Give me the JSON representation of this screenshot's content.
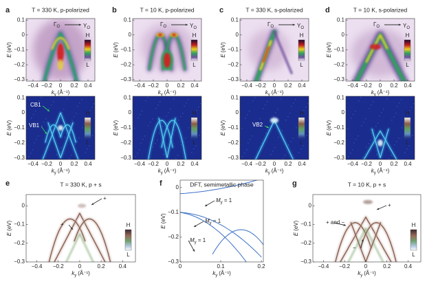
{
  "axes": {
    "ylabel_var": "E",
    "ylabel_unit": "(eV)",
    "xlabel_var": "k",
    "xlabel_sub": "y",
    "xlabel_unit": "(Å⁻¹)",
    "xticks": [
      "−0.4",
      "−0.2",
      "0",
      "0.2",
      "0.4"
    ],
    "yticks": [
      "0.1",
      "0",
      "−0.1",
      "−0.2",
      "−0.3"
    ]
  },
  "path_label": {
    "from": "Γ",
    "from_sub": "O",
    "to": "Y",
    "to_sub": "O"
  },
  "colorbar": {
    "high": "H",
    "low": "L"
  },
  "top_row": [
    {
      "label": "a",
      "title": "T = 330 K, p-polarized"
    },
    {
      "label": "b",
      "title": "T = 10 K, p-polarized"
    },
    {
      "label": "c",
      "title": "T = 330 K, s-polarized"
    },
    {
      "label": "d",
      "title": "T = 10 K, s-polarized"
    }
  ],
  "middle_row_annotations": {
    "a": [
      "CB1",
      "VB1"
    ],
    "c": [
      "VB2"
    ]
  },
  "bottom_row": [
    {
      "label": "e",
      "title": "T = 330 K, p + s",
      "yticks": [
        "0",
        "−0.1",
        "−0.2",
        "−0.3"
      ],
      "annotations": [
        "+",
        "+"
      ]
    },
    {
      "label": "f",
      "title": "DFT, semimetallic phase",
      "xticks": [
        "0",
        "0.1",
        "0.2"
      ],
      "yticks": [
        "0",
        "−0.1",
        "−0.2",
        "−0.3"
      ],
      "annotations": [
        {
          "var": "M",
          "sub": "y",
          "eq": " = 1"
        },
        {
          "var": "M",
          "sub": "y",
          "eq": " = 1"
        },
        {
          "var": "M",
          "sub": "y",
          "eq": " = 1"
        }
      ]
    },
    {
      "label": "g",
      "title": "T = 10 K, p + s",
      "yticks": [
        "0",
        "−0.1",
        "−0.2",
        "−0.3"
      ],
      "annotations": [
        "+ and −",
        "+",
        "−"
      ]
    }
  ]
}
